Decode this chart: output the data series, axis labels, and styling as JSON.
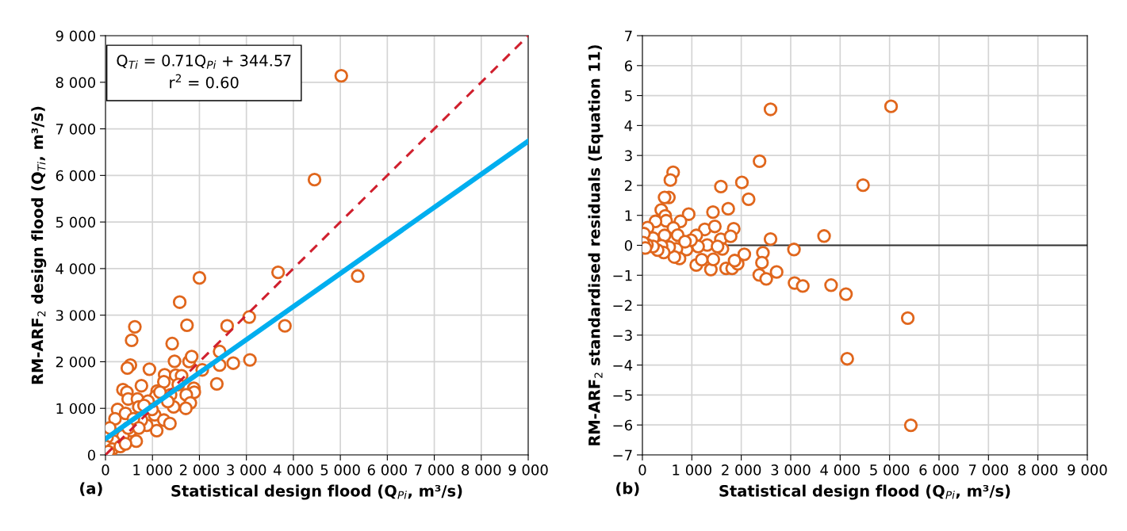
{
  "chart_data": [
    {
      "type": "scatter",
      "xlabel": "Statistical design flood (Q$_{Pi}$, m³/s)",
      "ylabel": "RM-ARF$_{2}$ design flood (Q$_{Ti}$, m³/s)",
      "annotations": [
        "Q$_{Ti}$ = 0.71Q$_{Pi}$ + 344.57\nr$^{2}$ = 0.60",
        "(a)"
      ],
      "xlim": [
        0,
        9000
      ],
      "ylim": [
        0,
        9000
      ],
      "xticks": [
        0,
        {
          "value": 1000,
          "label": "1 000"
        },
        {
          "value": 2000,
          "label": "2 000"
        },
        {
          "value": 3000,
          "label": "3 000"
        },
        {
          "value": 4000,
          "label": "4 000"
        },
        {
          "value": 5000,
          "label": "5 000"
        },
        {
          "value": 6000,
          "label": "6 000"
        },
        {
          "value": 7000,
          "label": "7 000"
        },
        {
          "value": 8000,
          "label": "8 000"
        },
        {
          "value": 9000,
          "label": "9 000"
        }
      ],
      "yticks": [
        0,
        {
          "value": 1000,
          "label": "1 000"
        },
        {
          "value": 2000,
          "label": "2 000"
        },
        {
          "value": 3000,
          "label": "3 000"
        },
        {
          "value": 4000,
          "label": "4 000"
        },
        {
          "value": 5000,
          "label": "5 000"
        },
        {
          "value": 6000,
          "label": "6 000"
        },
        {
          "value": 7000,
          "label": "7 000"
        },
        {
          "value": 8000,
          "label": "8 000"
        },
        {
          "value": 9000,
          "label": "9 000"
        }
      ],
      "grid": true,
      "marker": "circle",
      "series": [
        {
          "color": "#e0661c",
          "x": [
            5020,
            4450,
            3675,
            5370,
            2000,
            1580,
            625,
            557,
            1735,
            1420,
            530,
            466,
            935,
            1470,
            1780,
            1835,
            2060,
            2430,
            2430,
            2720,
            3075,
            2370,
            2590,
            3060,
            3820,
            765,
            372,
            456,
            483,
            680,
            1260,
            1243,
            1495,
            1620,
            1550,
            1880,
            1890,
            1720,
            1807,
            1710,
            1450,
            1385,
            1100,
            1074,
            905,
            710,
            258,
            203,
            426,
            1047,
            1243,
            1372,
            1091,
            540,
            372,
            654,
            174,
            34,
            6,
            146,
            316,
            426,
            878,
            765,
            990,
            1159,
            821,
            595,
            90,
            62,
            483,
            710,
            1328
          ],
          "values": [
            8140,
            5910,
            3920,
            3840,
            3800,
            3280,
            2750,
            2460,
            2785,
            2390,
            1930,
            1865,
            1840,
            2010,
            2005,
            2110,
            1825,
            2220,
            1930,
            1970,
            2040,
            1525,
            2770,
            2960,
            2770,
            1485,
            1400,
            1345,
            1200,
            1200,
            1720,
            1570,
            1710,
            1700,
            1510,
            1430,
            1345,
            1290,
            1117,
            1000,
            1030,
            1290,
            1370,
            1260,
            1155,
            1030,
            975,
            777,
            890,
            862,
            748,
            675,
            522,
            522,
            408,
            295,
            295,
            380,
            182,
            124,
            182,
            238,
            635,
            748,
            975,
            1345,
            1060,
            777,
            578,
            68,
            578,
            578,
            1145
          ]
        },
        {
          "type": "line",
          "color": "#d0202e",
          "line_style": "dashed",
          "marker": "none",
          "x": [
            0,
            9000
          ],
          "values": [
            0,
            9000
          ]
        },
        {
          "type": "line",
          "color": "#00aeef",
          "line_style": "solid",
          "marker": "none",
          "x": [
            0,
            9000
          ],
          "values": [
            344.57,
            6734.57
          ]
        }
      ]
    },
    {
      "type": "scatter",
      "xlabel": "Statistical design flood (Q$_{Pi}$, m³/s)",
      "ylabel": "RM-ARF$_{2}$ standardised residuals (Equation 11)",
      "annotations": [
        "(b)"
      ],
      "xlim": [
        0,
        9000
      ],
      "ylim": [
        -7,
        7
      ],
      "xticks": [
        0,
        {
          "value": 1000,
          "label": "1 000"
        },
        {
          "value": 2000,
          "label": "2 000"
        },
        {
          "value": 3000,
          "label": "3 000"
        },
        {
          "value": 4000,
          "label": "4 000"
        },
        {
          "value": 5000,
          "label": "5 000"
        },
        {
          "value": 6000,
          "label": "6 000"
        },
        {
          "value": 7000,
          "label": "7 000"
        },
        {
          "value": 8000,
          "label": "8 000"
        },
        {
          "value": 9000,
          "label": "9 000"
        }
      ],
      "yticks": [
        {
          "value": -7,
          "label": "−7"
        },
        {
          "value": -6,
          "label": "−6"
        },
        {
          "value": -5,
          "label": "−5"
        },
        {
          "value": -4,
          "label": "−4"
        },
        {
          "value": -3,
          "label": "−3"
        },
        {
          "value": -2,
          "label": "−2"
        },
        {
          "value": -1,
          "label": "−1"
        },
        0,
        1,
        2,
        3,
        4,
        5,
        6,
        7
      ],
      "grid": true,
      "marker": "circle",
      "ref_lines": [
        {
          "axis": "y",
          "value": 0,
          "color": "#333333"
        }
      ],
      "series": [
        {
          "color": "#e0661c",
          "x": [
            2592,
            5030,
            2370,
            4463,
            2013,
            1588,
            2148,
            1736,
            1428,
            622,
            566,
            536,
            449,
            382,
            936,
            462,
            480,
            770,
            265,
            1262,
            1465,
            1847,
            105,
            628,
            449,
            714,
            1090,
            1588,
            1785,
            2592,
            3675,
            215,
            31,
            3066,
            2062,
            2438,
            2419,
            2715,
            2364,
            2505,
            3078,
            3244,
            3817,
            4118,
            5368,
            4143,
            5430,
            1385,
            1693,
            1816,
            1927,
            1865,
            1090,
            1200,
            1434,
            1619,
            1311,
            1127,
            893,
            689,
            751,
            646,
            542,
            388,
            431,
            308,
            215,
            92,
            18,
            62,
            985,
            862,
            1520
          ],
          "values": [
            4.54,
            4.64,
            2.81,
            2.01,
            2.1,
            1.96,
            1.54,
            1.22,
            1.11,
            2.44,
            2.18,
            1.6,
            1.6,
            1.18,
            1.04,
            0.98,
            0.82,
            0.8,
            0.8,
            0.53,
            0.63,
            0.55,
            0.59,
            0.58,
            0.33,
            0.34,
            0.33,
            0.2,
            0.3,
            0.21,
            0.31,
            0.24,
            0.39,
            -0.14,
            -0.3,
            -0.25,
            -0.58,
            -0.89,
            -0.99,
            -1.12,
            -1.26,
            -1.36,
            -1.33,
            -1.63,
            -2.43,
            -3.79,
            -6.01,
            -0.81,
            -0.77,
            -0.77,
            -0.62,
            -0.51,
            -0.66,
            -0.48,
            -0.47,
            -0.12,
            0.01,
            -0.04,
            -0.14,
            -0.12,
            -0.44,
            -0.39,
            -0.06,
            -0.02,
            -0.24,
            -0.16,
            -0.04,
            0.02,
            0.09,
            -0.09,
            0.17,
            0.12,
            -0.04
          ]
        }
      ]
    }
  ]
}
